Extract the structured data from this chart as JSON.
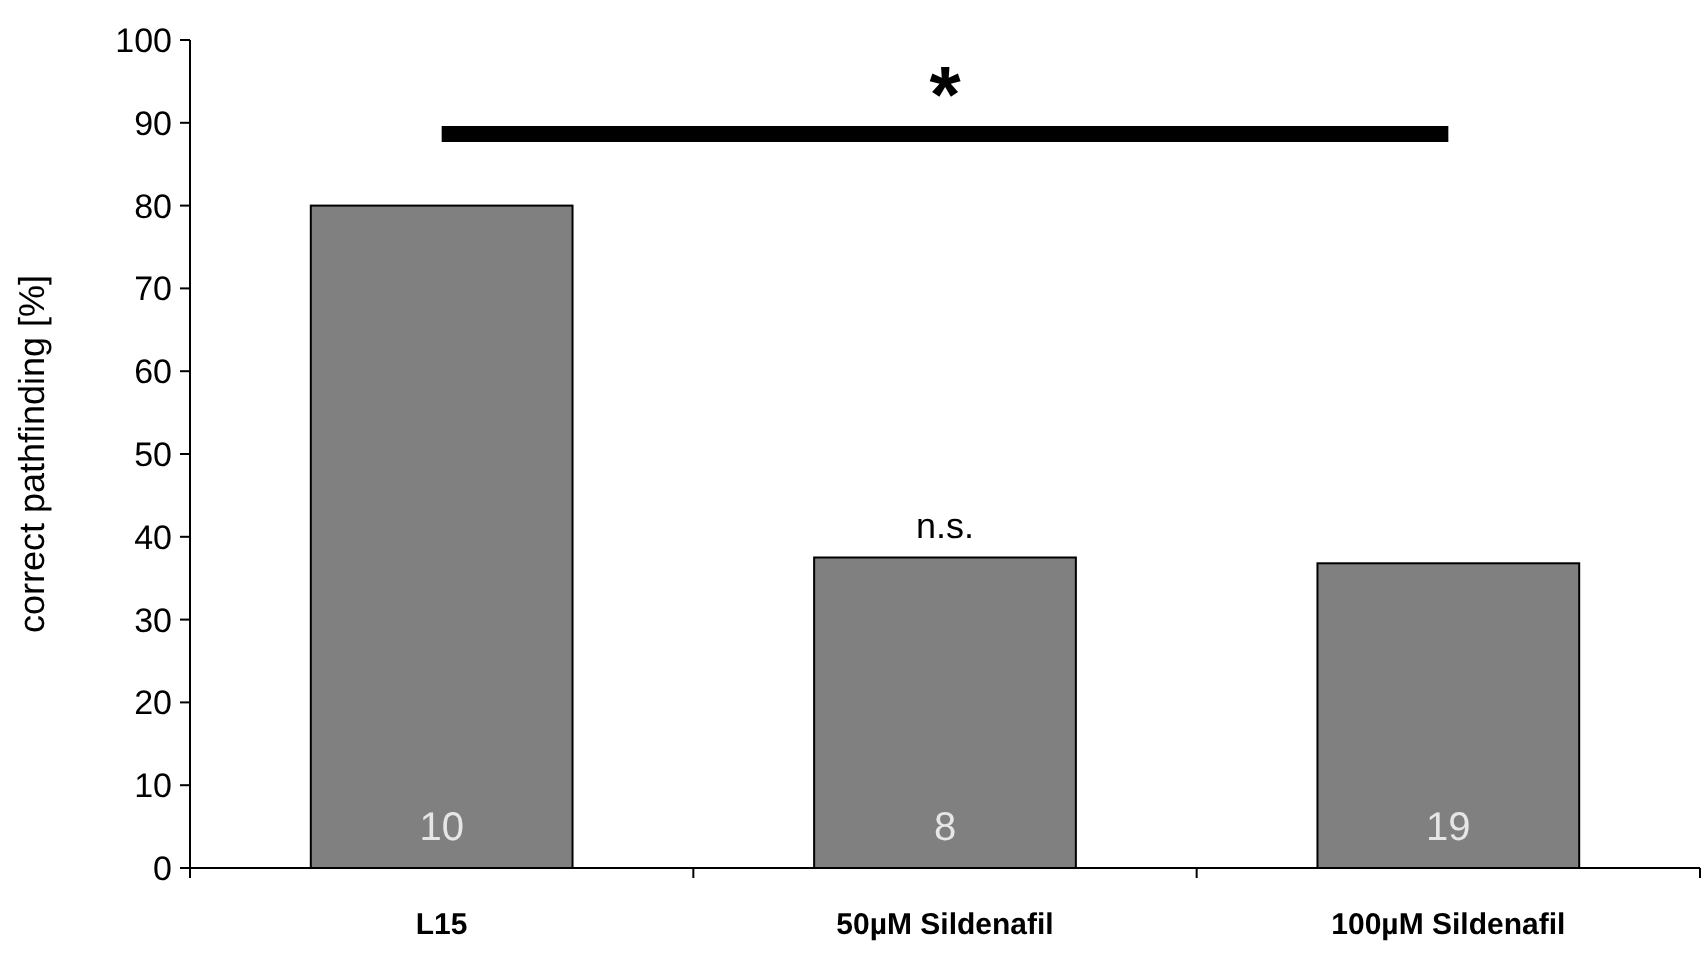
{
  "chart_data": {
    "type": "bar",
    "ylabel": "correct pathfinding [%]",
    "categories": [
      "L15",
      "50µM Sildenafil",
      "100µM Sildenafil"
    ],
    "values": [
      80,
      37.5,
      36.8
    ],
    "color": "#808080",
    "ylim": [
      0,
      100
    ],
    "yticks": [
      0,
      10,
      20,
      30,
      40,
      50,
      60,
      70,
      80,
      90,
      100
    ],
    "annotations": [
      "*",
      "n.s.",
      "10",
      "8",
      "19"
    ]
  }
}
